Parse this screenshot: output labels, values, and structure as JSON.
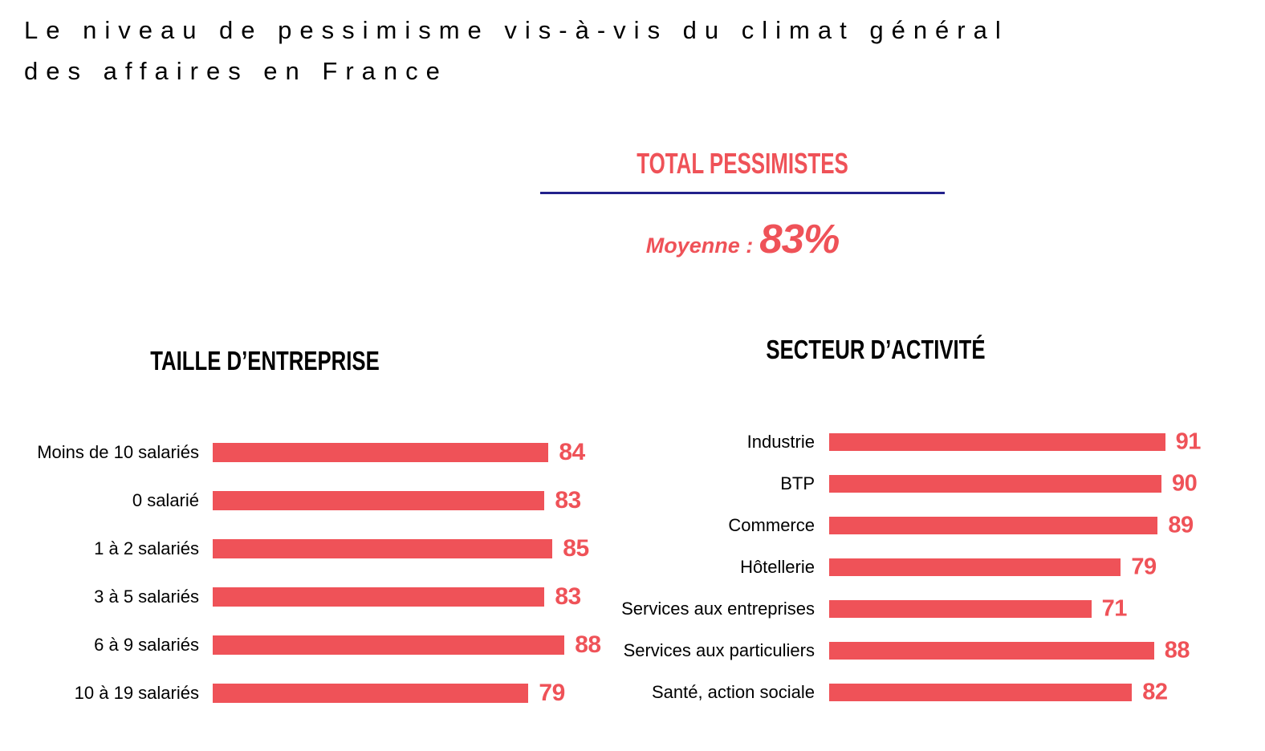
{
  "page": {
    "title_line1": "Le niveau de pessimisme vis-à-vis du climat général",
    "title_line2": "des affaires en France"
  },
  "summary": {
    "heading": "TOTAL PESSIMISTES",
    "average_label": "Moyenne :",
    "average_value": "83%"
  },
  "colors": {
    "accent_red": "#EF5258",
    "divider_navy": "#22218B",
    "text_black": "#000000"
  },
  "chart_data": [
    {
      "type": "bar",
      "orientation": "horizontal",
      "title": "TAILLE D’ENTREPRISE",
      "categories": [
        "Moins de 10 salariés",
        "0 salarié",
        "1 à 2 salariés",
        "3 à 5 salariés",
        "6 à 9 salariés",
        "10 à 19 salariés"
      ],
      "values": [
        84,
        83,
        85,
        83,
        88,
        79
      ],
      "xlim": [
        0,
        100
      ],
      "grid": false,
      "value_labels": "end-of-bar",
      "legend": "none"
    },
    {
      "type": "bar",
      "orientation": "horizontal",
      "title": "SECTEUR D’ACTIVITÉ",
      "categories": [
        "Industrie",
        "BTP",
        "Commerce",
        "Hôtellerie",
        "Services aux entreprises",
        "Services aux particuliers",
        "Santé, action sociale"
      ],
      "values": [
        91,
        90,
        89,
        79,
        71,
        88,
        82
      ],
      "xlim": [
        0,
        100
      ],
      "grid": false,
      "value_labels": "end-of-bar",
      "legend": "none"
    }
  ]
}
